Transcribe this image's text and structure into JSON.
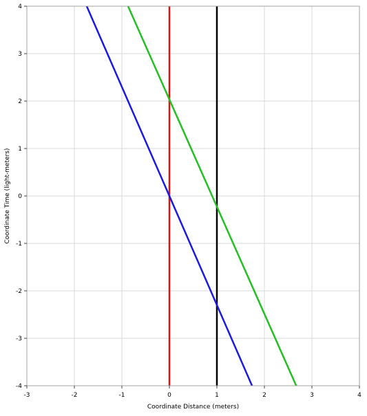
{
  "chart_data": {
    "type": "line",
    "title": "",
    "xlabel": "Coordinate Distance (meters)",
    "ylabel": "Coordinate Time (light-meters)",
    "xlim": [
      -3,
      4
    ],
    "ylim": [
      -4,
      4
    ],
    "x_ticks": [
      -3,
      -2,
      -1,
      0,
      1,
      2,
      3,
      4
    ],
    "y_ticks": [
      -4,
      -3,
      -2,
      -1,
      0,
      1,
      2,
      3,
      4
    ],
    "grid": true,
    "legend": "none",
    "series": [
      {
        "color": "#e01010",
        "points": [
          [
            0,
            -4
          ],
          [
            0,
            4
          ]
        ]
      },
      {
        "color": "#000000",
        "points": [
          [
            1,
            -4
          ],
          [
            1,
            4
          ]
        ]
      },
      {
        "color": "#1a1ae0",
        "points": [
          [
            -1.74,
            4
          ],
          [
            1.74,
            -4
          ]
        ]
      },
      {
        "color": "#22c022",
        "points": [
          [
            -0.87,
            4
          ],
          [
            2.67,
            -4
          ]
        ]
      }
    ]
  }
}
